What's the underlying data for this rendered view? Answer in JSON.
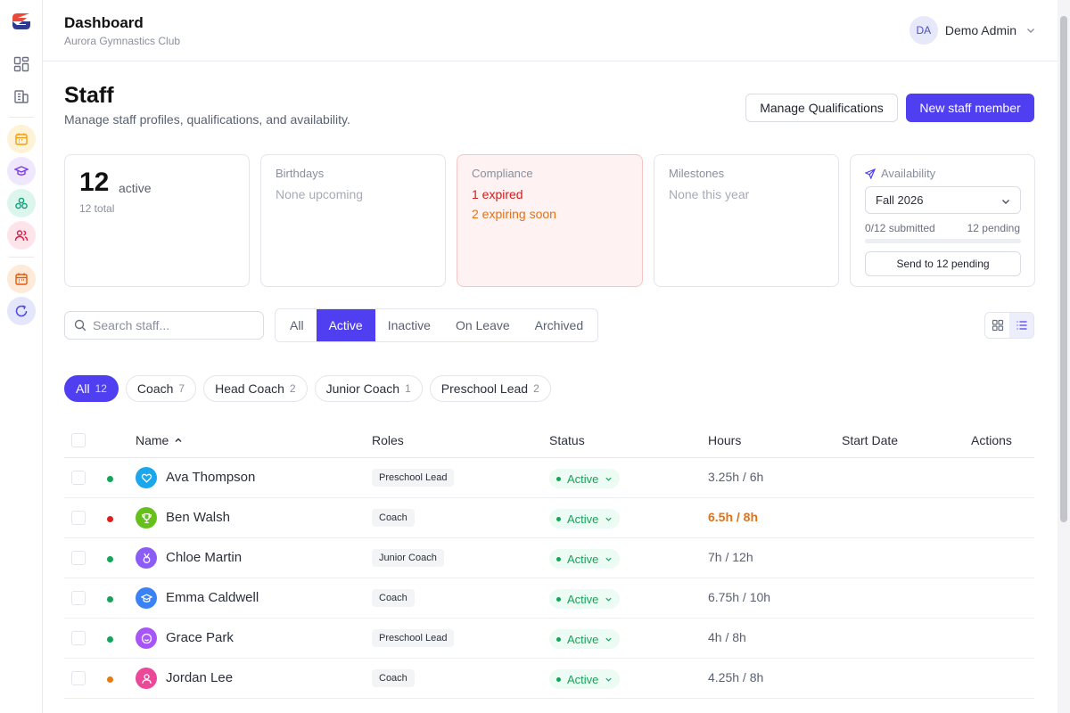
{
  "header": {
    "title": "Dashboard",
    "subtitle": "Aurora Gymnastics Club"
  },
  "user": {
    "initials": "DA",
    "name": "Demo Admin"
  },
  "sidebar": {
    "items": [
      {
        "icon": "grid-icon"
      },
      {
        "icon": "building-icon"
      },
      {
        "icon": "calendar-icon",
        "color": "#f59e0b"
      },
      {
        "icon": "graduation-cap-icon",
        "color": "#7c3aed"
      },
      {
        "icon": "network-icon",
        "color": "#0f9f7a"
      },
      {
        "icon": "users-icon",
        "color": "#e11d48"
      },
      {
        "icon": "calendar-alt-icon",
        "color": "#ea580c"
      },
      {
        "icon": "refresh-icon",
        "color": "#4f46e5"
      }
    ]
  },
  "page": {
    "title": "Staff",
    "subtitle": "Manage staff profiles, qualifications, and availability."
  },
  "actions": {
    "manage": "Manage Qualifications",
    "new": "New staff member"
  },
  "stats": {
    "active_count": "12",
    "active_label": "active",
    "total": "12 total",
    "birthdays": {
      "label": "Birthdays",
      "value": "None upcoming"
    },
    "compliance": {
      "label": "Compliance",
      "expired": "1 expired",
      "expiring": "2 expiring soon"
    },
    "milestones": {
      "label": "Milestones",
      "value": "None this year"
    },
    "availability": {
      "label": "Availability",
      "term": "Fall 2026",
      "submitted": "0/12 submitted",
      "pending": "12 pending",
      "progress": 0,
      "send": "Send to 12 pending"
    }
  },
  "search": {
    "placeholder": "Search staff..."
  },
  "tabs": [
    "All",
    "Active",
    "Inactive",
    "On Leave",
    "Archived"
  ],
  "active_tab": "Active",
  "roles": [
    {
      "label": "All",
      "count": "12",
      "active": true
    },
    {
      "label": "Coach",
      "count": "7"
    },
    {
      "label": "Head Coach",
      "count": "2"
    },
    {
      "label": "Junior Coach",
      "count": "1"
    },
    {
      "label": "Preschool Lead",
      "count": "2"
    }
  ],
  "table": {
    "columns": [
      "Name",
      "Roles",
      "Status",
      "Hours",
      "Start Date",
      "Actions"
    ],
    "sort_column": "Name",
    "rows": [
      {
        "name": "Ava Thompson",
        "role": "Preschool Lead",
        "status": "Active",
        "hours": "3.25h / 6h",
        "start_date": "",
        "dot": "#16a35a",
        "avatar_color": "#1aa7ec",
        "icon": "heart-icon"
      },
      {
        "name": "Ben Walsh",
        "role": "Coach",
        "status": "Active",
        "hours": "6.5h / 8h",
        "start_date": "",
        "dot": "#e11d1d",
        "avatar_color": "#65c01c",
        "icon": "trophy-icon",
        "hours_warn": true
      },
      {
        "name": "Chloe Martin",
        "role": "Junior Coach",
        "status": "Active",
        "hours": "7h / 12h",
        "start_date": "",
        "dot": "#16a35a",
        "avatar_color": "#8b5cf6",
        "icon": "medal-icon"
      },
      {
        "name": "Emma Caldwell",
        "role": "Coach",
        "status": "Active",
        "hours": "6.75h / 10h",
        "start_date": "",
        "dot": "#16a35a",
        "avatar_color": "#3b82f6",
        "icon": "graduation-cap-icon"
      },
      {
        "name": "Grace Park",
        "role": "Preschool Lead",
        "status": "Active",
        "hours": "4h / 8h",
        "start_date": "",
        "dot": "#16a35a",
        "avatar_color": "#a855f7",
        "icon": "smile-icon"
      },
      {
        "name": "Jordan Lee",
        "role": "Coach",
        "status": "Active",
        "hours": "4.25h / 8h",
        "start_date": "",
        "dot": "#ea7a10",
        "avatar_color": "#ec4899",
        "icon": "user-icon"
      }
    ]
  },
  "colors": {
    "primary": "#4f3ff0",
    "success": "#16a35a",
    "danger": "#d21b1b",
    "warning": "#e0731a"
  }
}
